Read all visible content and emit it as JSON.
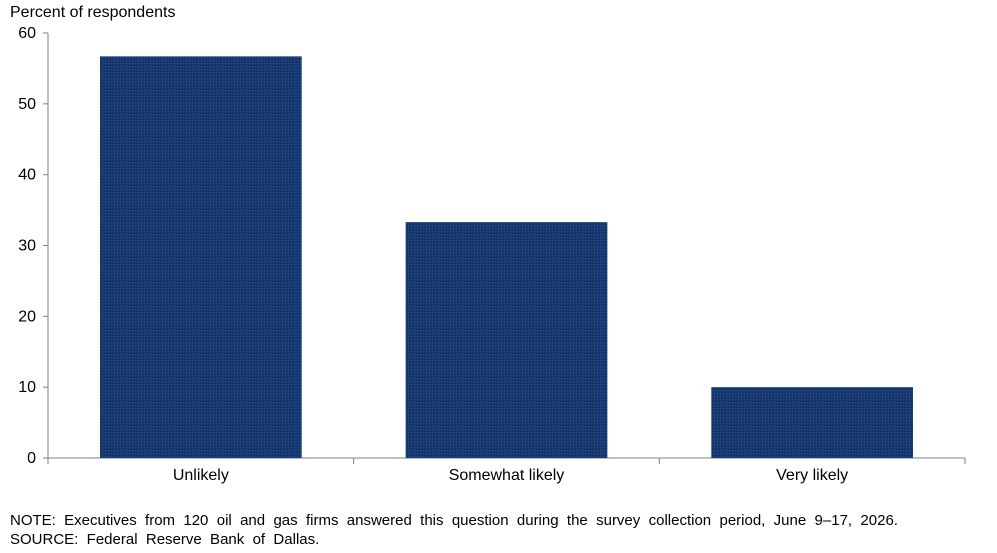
{
  "chart_data": {
    "type": "bar",
    "ylabel": "Percent of respondents",
    "categories": [
      "Unlikely",
      "Somewhat likely",
      "Very likely"
    ],
    "values": [
      56.7,
      33.3,
      10.0
    ],
    "ylim": [
      0,
      60
    ],
    "yticks": [
      "0",
      "10",
      "20",
      "30",
      "40",
      "50",
      "60"
    ],
    "bar_color": "#163a70",
    "grid": false,
    "legend": "none"
  },
  "notes": {
    "note": "NOTE:  Executives  from  120  oil  and  gas  firms  answered  this  question  during  the  survey  collection  period,  June  9–17,  2026.",
    "source": "SOURCE:  Federal  Reserve  Bank  of  Dallas."
  }
}
